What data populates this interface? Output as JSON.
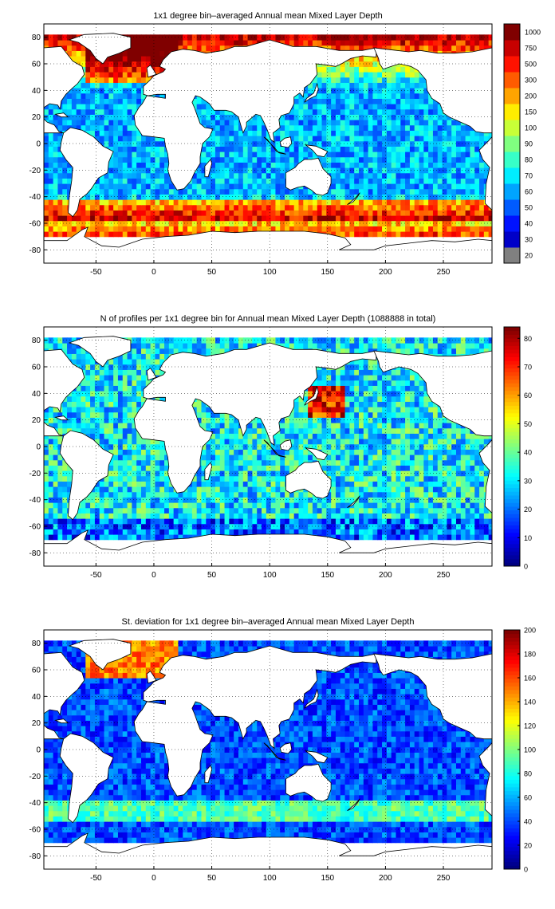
{
  "panels": [
    {
      "id": "mld-mean",
      "title": "1x1 degree bin–averaged Annual mean Mixed Layer Depth",
      "colorbar_scale": "nonlinear",
      "colorbar_ticks": [
        "20",
        "30",
        "40",
        "50",
        "60",
        "70",
        "80",
        "90",
        "100",
        "150",
        "200",
        "300",
        "500",
        "750",
        "1000"
      ]
    },
    {
      "id": "n-profiles",
      "title": "N of profiles per 1x1 degree bin for Annual mean Mixed Layer Depth  (1088888 in total)",
      "colorbar_scale": "linear",
      "colorbar_range": [
        0,
        84
      ],
      "colorbar_ticks": [
        "0",
        "10",
        "20",
        "30",
        "40",
        "50",
        "60",
        "70",
        "80"
      ]
    },
    {
      "id": "mld-std",
      "title": "St. deviation for 1x1 degree bin–averaged Annual mean Mixed Layer Depth",
      "colorbar_scale": "linear",
      "colorbar_range": [
        0,
        200
      ],
      "colorbar_ticks": [
        "0",
        "20",
        "40",
        "60",
        "80",
        "100",
        "120",
        "140",
        "160",
        "180",
        "200"
      ]
    }
  ],
  "map_axes": {
    "lon_range": [
      -95,
      292
    ],
    "lat_range": [
      -90,
      90
    ],
    "lon_ticks": [
      "-50",
      "0",
      "50",
      "100",
      "150",
      "200",
      "250"
    ],
    "lat_ticks": [
      "80",
      "60",
      "40",
      "20",
      "0",
      "-20",
      "-40",
      "-60",
      "-80"
    ],
    "grid": "dotted"
  },
  "colors": {
    "land": "#ffffff",
    "coast": "#000000",
    "missing": "#808080"
  }
}
